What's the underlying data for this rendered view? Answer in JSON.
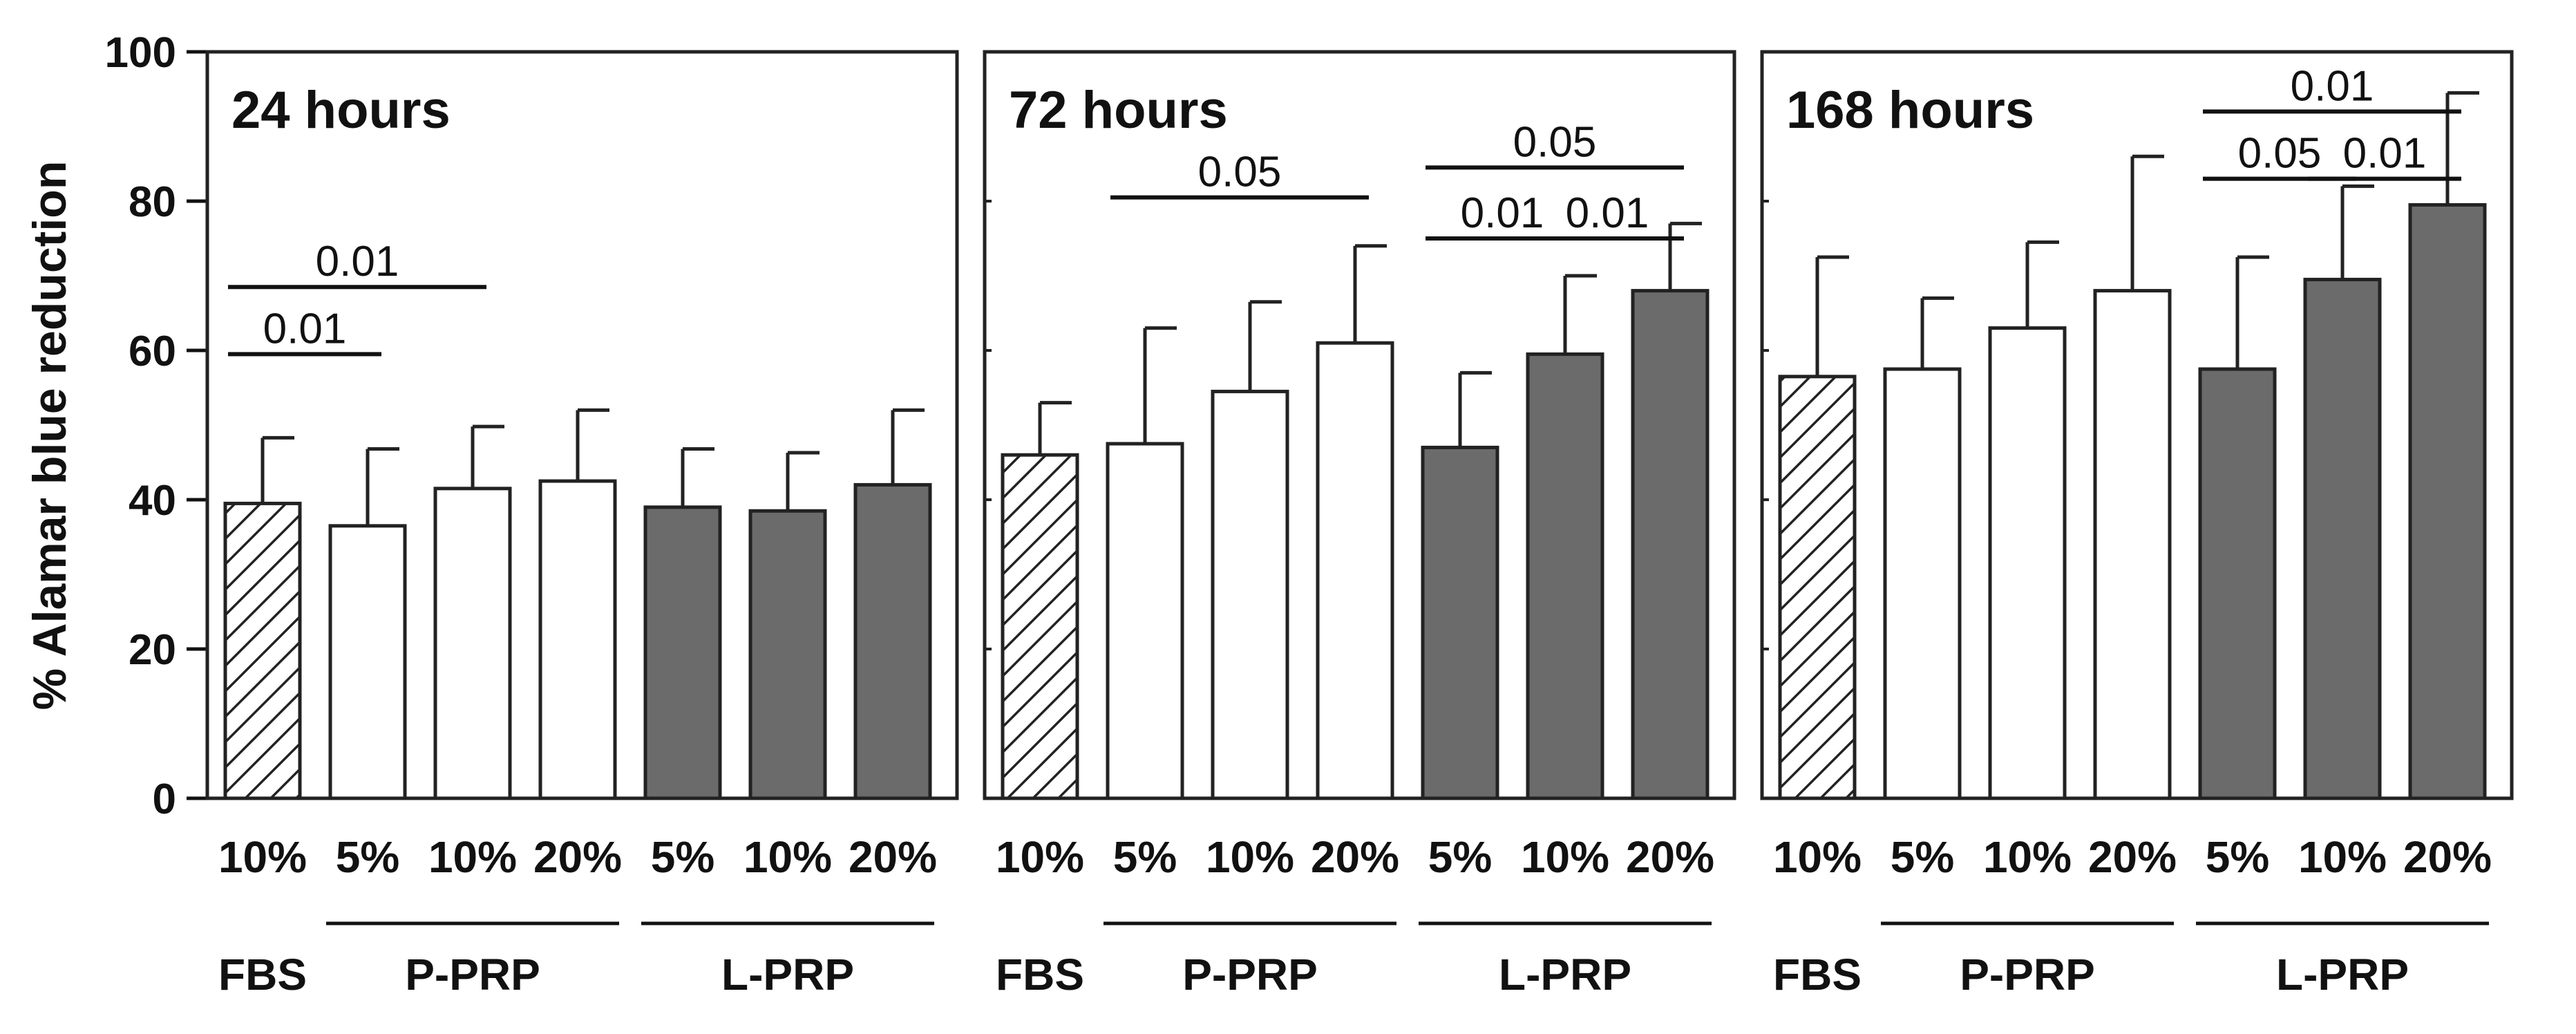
{
  "chart_data": {
    "type": "bar",
    "ylabel": "% Alamar blue reduction",
    "ylim": [
      0,
      100
    ],
    "yticks": [
      0,
      20,
      40,
      60,
      80,
      100
    ],
    "categories": [
      "10%",
      "5%",
      "10%",
      "20%",
      "5%",
      "10%",
      "20%"
    ],
    "groups": [
      {
        "label": "FBS",
        "span": [
          0,
          0
        ],
        "pattern": "hatched"
      },
      {
        "label": "P-PRP",
        "span": [
          1,
          3
        ],
        "pattern": "white"
      },
      {
        "label": "L-PRP",
        "span": [
          4,
          6
        ],
        "pattern": "gray"
      }
    ],
    "panels": [
      {
        "title": "24 hours",
        "values": [
          39.5,
          36.5,
          41.5,
          42.5,
          39,
          38.5,
          42
        ],
        "errors": [
          48.3,
          46.8,
          49.8,
          52,
          46.8,
          46.3,
          52
        ],
        "significance": [
          {
            "from": 1,
            "to": 2,
            "level": 59.5,
            "label": "0.01"
          },
          {
            "from": 1,
            "to": 3,
            "level": 68.5,
            "label": "0.01"
          }
        ]
      },
      {
        "title": "72 hours",
        "values": [
          46,
          47.5,
          54.5,
          61,
          47,
          59.5,
          68
        ],
        "errors": [
          53,
          63,
          66.5,
          74,
          57,
          70,
          77
        ],
        "significance": [
          {
            "from": 2,
            "to": 4,
            "level": 80.5,
            "label": "0.05"
          },
          {
            "from": 5,
            "to": 6,
            "level": 75,
            "label": "0.01"
          },
          {
            "from": 6,
            "to": 7,
            "level": 75,
            "label": "0.01"
          },
          {
            "from": 5,
            "to": 7,
            "level": 84.5,
            "label": "0.05"
          }
        ]
      },
      {
        "title": "168 hours",
        "values": [
          56.5,
          57.5,
          63,
          68,
          57.5,
          69.5,
          79.5
        ],
        "errors": [
          72.5,
          67,
          74.5,
          86,
          72.5,
          82,
          94.5
        ],
        "significance": [
          {
            "from": 5,
            "to": 6,
            "level": 83,
            "label": "0.05"
          },
          {
            "from": 6,
            "to": 7,
            "level": 83,
            "label": "0.01"
          },
          {
            "from": 5,
            "to": 7,
            "level": 92,
            "label": "0.01"
          }
        ]
      }
    ]
  }
}
